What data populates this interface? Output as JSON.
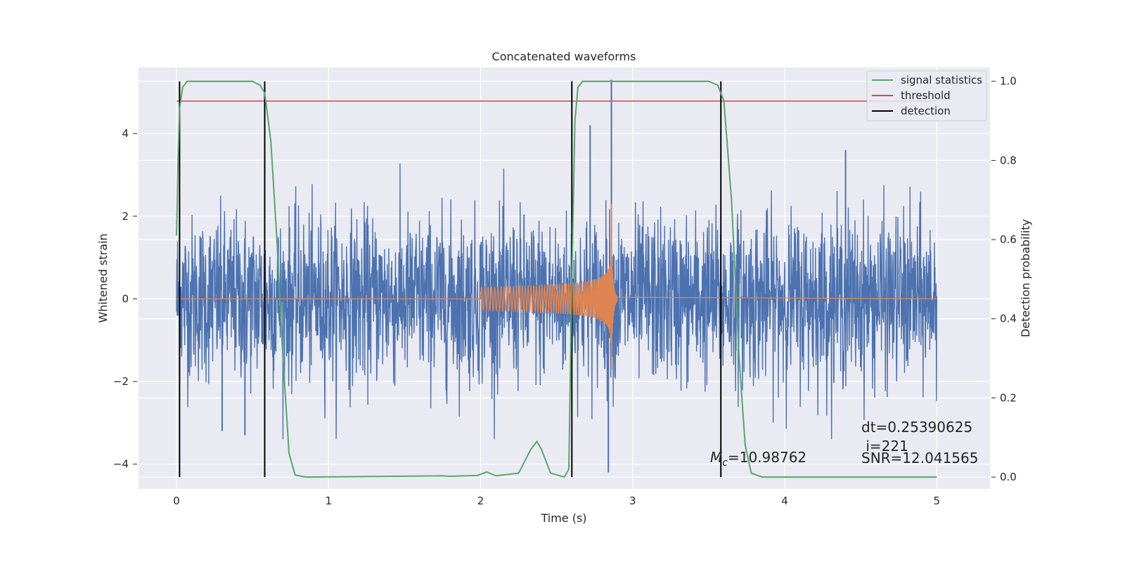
{
  "chart_data": {
    "type": "line",
    "title": "Concatenated waveforms",
    "xlabel": "Time (s)",
    "ylabel_left": "Whitened strain",
    "ylabel_right": "Detection probability",
    "xlim": [
      -0.25,
      5.35
    ],
    "ylim_left": [
      -4.6,
      5.6
    ],
    "ylim_right": [
      -0.03,
      1.035
    ],
    "x_ticks": [
      "0",
      "1",
      "2",
      "3",
      "4",
      "5"
    ],
    "y_left_ticks": [
      "4",
      "2",
      "0",
      "−2",
      "−4"
    ],
    "y_right_ticks": [
      "1.0",
      "0.8",
      "0.6",
      "0.4",
      "0.2",
      "0.0"
    ],
    "grid": true,
    "legend_position": "top-right",
    "series": [
      {
        "name": "strain",
        "axis": "left",
        "color": "#4c72b0",
        "description_values": {
          "t_start": 0,
          "t_end": 5,
          "noise_sigma": 1.0,
          "max": 5.3,
          "min": -4.2
        },
        "spikes": [
          [
            2.86,
            5.3
          ],
          [
            2.84,
            -4.2
          ],
          [
            2.72,
            4.2
          ],
          [
            4.4,
            3.6
          ],
          [
            0.3,
            -3.2
          ],
          [
            0.45,
            -3.3
          ]
        ]
      },
      {
        "name": "waveform",
        "axis": "left",
        "color": "#dd8452",
        "description_values": {
          "t_on": 2.0,
          "t_merge": 2.86,
          "t_off": 2.9,
          "peak": 2.3,
          "trough": -1.7
        }
      },
      {
        "name": "signal statistics",
        "axis": "right",
        "color": "#55a868",
        "points": [
          [
            0.0,
            0.61
          ],
          [
            0.01,
            0.8
          ],
          [
            0.02,
            0.93
          ],
          [
            0.04,
            0.985
          ],
          [
            0.07,
            1.0
          ],
          [
            0.5,
            1.0
          ],
          [
            0.55,
            0.99
          ],
          [
            0.58,
            0.97
          ],
          [
            0.62,
            0.85
          ],
          [
            0.66,
            0.6
          ],
          [
            0.7,
            0.3
          ],
          [
            0.74,
            0.06
          ],
          [
            0.78,
            0.005
          ],
          [
            0.85,
            0.0
          ],
          [
            1.75,
            0.003
          ],
          [
            1.8,
            0.002
          ],
          [
            1.98,
            0.004
          ],
          [
            2.04,
            0.013
          ],
          [
            2.1,
            0.003
          ],
          [
            2.25,
            0.01
          ],
          [
            2.33,
            0.07
          ],
          [
            2.37,
            0.09
          ],
          [
            2.4,
            0.07
          ],
          [
            2.46,
            0.01
          ],
          [
            2.55,
            0.0
          ],
          [
            2.58,
            0.02
          ],
          [
            2.6,
            0.5
          ],
          [
            2.62,
            0.9
          ],
          [
            2.64,
            0.985
          ],
          [
            2.67,
            1.0
          ],
          [
            3.5,
            1.0
          ],
          [
            3.56,
            0.99
          ],
          [
            3.6,
            0.95
          ],
          [
            3.65,
            0.7
          ],
          [
            3.7,
            0.3
          ],
          [
            3.74,
            0.08
          ],
          [
            3.78,
            0.01
          ],
          [
            3.85,
            0.0
          ],
          [
            5.0,
            0.0
          ]
        ]
      },
      {
        "name": "threshold",
        "axis": "right",
        "color": "#c44e52",
        "value": 0.95,
        "x_range": [
          0,
          5
        ]
      },
      {
        "name": "detection",
        "axis": "right",
        "color": "#000000",
        "x": [
          0.02,
          0.58,
          2.6,
          3.58
        ],
        "y_range": [
          0,
          1.0
        ]
      }
    ],
    "legend": [
      "signal statistics",
      "threshold",
      "detection"
    ],
    "annotations": {
      "mc_symbol": "M",
      "mc_sub": "c",
      "mc_value": "=10.98762",
      "dt": "dt=0.25390625",
      "i": " i=221",
      "snr": "SNR=12.041565"
    }
  }
}
